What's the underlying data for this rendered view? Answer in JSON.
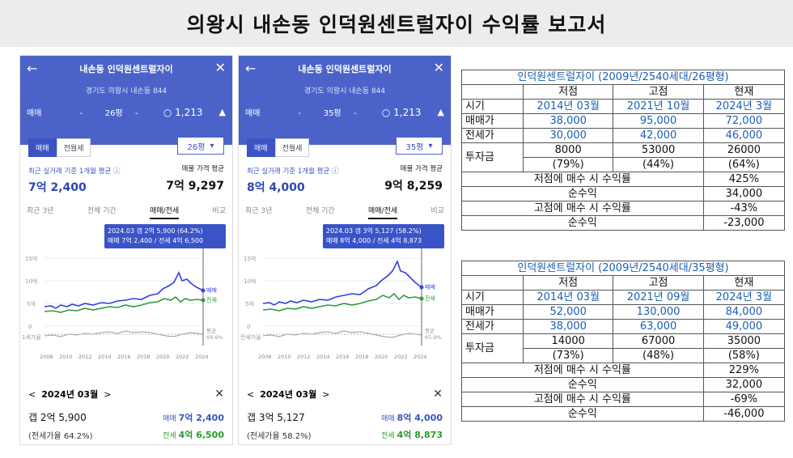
{
  "title": "의왕시 내손동 인덕원센트럴자이 수익률 보고서",
  "phones": [
    {
      "name": "내손동 인덕원센트럴자이",
      "addr": "경기도 의왕시 내손동 844",
      "type": "매매",
      "size": "26평",
      "comments": "1,213",
      "toggle_on": "매매",
      "toggle_off": "전월세",
      "size_sel": "26평",
      "avg_label": "최근 실거래 기준 1개월 평균",
      "avg_value": "7억 2,400",
      "ask_label": "매물 가격 평균",
      "ask_value": "7억 9,297",
      "tabs": [
        "최근 3년",
        "전체 기간",
        "매매/전세",
        "비교"
      ],
      "tip1": "2024.03 갭 2억 5,900 (64.2%)",
      "tip2": "매매 7억 2,400 / 전세 4억 6,500",
      "sel_month": "2024년 03월",
      "gap": "갭 2억 5,900",
      "trade_label": "매매",
      "trade_val": "7억 2,400",
      "ratio": "(전세가율 64.2%)",
      "jeonse_label": "전세",
      "jeonse_val": "4억 6,500",
      "y_labels": [
        "15억",
        "10억",
        "5억",
        "0",
        "1세가율"
      ],
      "x_labels": [
        "2008",
        "2010",
        "2012",
        "2014",
        "2016",
        "2018",
        "2020",
        "2022",
        "2024"
      ],
      "line_tags": [
        "매매",
        "전세",
        "평균",
        "69.6%"
      ]
    },
    {
      "name": "내손동 인덕원센트럴자이",
      "addr": "경기도 의왕시 내손동 844",
      "type": "매매",
      "size": "35평",
      "comments": "1,213",
      "toggle_on": "매매",
      "toggle_off": "전월세",
      "size_sel": "35평",
      "avg_label": "최근 실거래 기준 1개월 평균",
      "avg_value": "8억 4,000",
      "ask_label": "매물 가격 평균",
      "ask_value": "9억 8,259",
      "tabs": [
        "최근 3년",
        "전체 기간",
        "매매/전세",
        "비교"
      ],
      "tip1": "2024.03 갭 3억 5,127 (58.2%)",
      "tip2": "매매 8억 4,000 / 전세 4억 8,873",
      "sel_month": "2024년 03월",
      "gap": "갭 3억 5,127",
      "trade_label": "매매",
      "trade_val": "8억 4,000",
      "ratio": "(전세가율 58.2%)",
      "jeonse_label": "전세",
      "jeonse_val": "4억 8,873",
      "y_labels": [
        "15억",
        "10억",
        "5억",
        "0",
        "전세가율"
      ],
      "x_labels": [
        "2008",
        "2010",
        "2012",
        "2014",
        "2016",
        "2018",
        "2020",
        "2022",
        "2024"
      ],
      "line_tags": [
        "매매",
        "전세",
        "평균",
        "65.9%"
      ]
    }
  ],
  "tables": [
    {
      "title": "인덕원센트럴자이 (2009년/2540세대/26평형)",
      "cols": [
        "저점",
        "고점",
        "현재"
      ],
      "rows": [
        {
          "label": "시기",
          "vals": [
            "2014년 03월",
            "2021년 10월",
            "2024년 3월"
          ]
        },
        {
          "label": "매매가",
          "vals": [
            "38,000",
            "95,000",
            "72,000"
          ]
        },
        {
          "label": "전세가",
          "vals": [
            "30,000",
            "42,000",
            "46,000"
          ]
        }
      ],
      "invest_label": "투자금",
      "invest": [
        [
          "8000",
          "(79%)"
        ],
        [
          "53000",
          "(44%)"
        ],
        [
          "26000",
          "(64%)"
        ]
      ],
      "summary": [
        {
          "label": "저점에 매수 시 수익률",
          "val": "425%"
        },
        {
          "label": "순수익",
          "val": "34,000"
        },
        {
          "label": "고점에 매수 시 수익률",
          "val": "-43%"
        },
        {
          "label": "순수익",
          "val": "-23,000"
        }
      ]
    },
    {
      "title": "인덕원센트럴자이 (2009년/2540세대/35평형)",
      "cols": [
        "저점",
        "고점",
        "현재"
      ],
      "rows": [
        {
          "label": "시기",
          "vals": [
            "2014년 03월",
            "2021년 09월",
            "2024년 3월"
          ]
        },
        {
          "label": "매매가",
          "vals": [
            "52,000",
            "130,000",
            "84,000"
          ]
        },
        {
          "label": "전세가",
          "vals": [
            "38,000",
            "63,000",
            "49,000"
          ]
        }
      ],
      "invest_label": "투자금",
      "invest": [
        [
          "14000",
          "(73%)"
        ],
        [
          "67000",
          "(48%)"
        ],
        [
          "35000",
          "(58%)"
        ]
      ],
      "summary": [
        {
          "label": "저점에 매수 시 수익률",
          "val": "229%"
        },
        {
          "label": "순수익",
          "val": "32,000"
        },
        {
          "label": "고점에 매수 시 수익률",
          "val": "-69%"
        },
        {
          "label": "순수익",
          "val": "-46,000"
        }
      ]
    }
  ],
  "colors": {
    "header": "#4b63c8",
    "trade_line": "#3340e0",
    "jeonse_line": "#2e9a3a",
    "ratio_line": "#999999",
    "table_blue": "#1a5fb4"
  },
  "icons": {
    "back": "arrow-left-icon",
    "close": "close-icon",
    "comment": "comment-icon",
    "bell": "bell-icon",
    "chevron": "chevron-down-icon",
    "info": "info-icon"
  }
}
